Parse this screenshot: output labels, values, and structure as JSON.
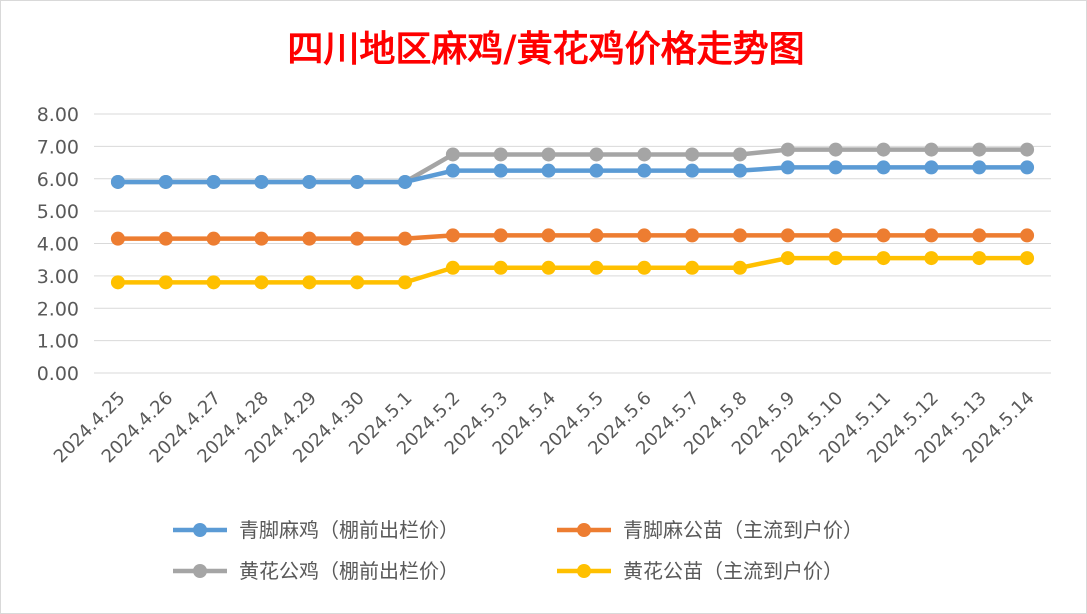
{
  "chart_data": {
    "type": "line",
    "title": "四川地区麻鸡/黄花鸡价格走势图",
    "title_color": "#ff0000",
    "xlabel": "",
    "ylabel": "",
    "ylim": [
      0,
      8
    ],
    "ytick_step": 1,
    "ytick_labels": [
      "0.00",
      "1.00",
      "2.00",
      "3.00",
      "4.00",
      "5.00",
      "6.00",
      "7.00",
      "8.00"
    ],
    "grid": true,
    "legend_position": "bottom",
    "categories": [
      "2024.4.25",
      "2024.4.26",
      "2024.4.27",
      "2024.4.28",
      "2024.4.29",
      "2024.4.30",
      "2024.5.1",
      "2024.5.2",
      "2024.5.3",
      "2024.5.4",
      "2024.5.5",
      "2024.5.6",
      "2024.5.7",
      "2024.5.8",
      "2024.5.9",
      "2024.5.10",
      "2024.5.11",
      "2024.5.12",
      "2024.5.13",
      "2024.5.14"
    ],
    "series": [
      {
        "name": "青脚麻鸡（棚前出栏价）",
        "color": "#5b9bd5",
        "values": [
          5.9,
          5.9,
          5.9,
          5.9,
          5.9,
          5.9,
          5.9,
          6.25,
          6.25,
          6.25,
          6.25,
          6.25,
          6.25,
          6.25,
          6.35,
          6.35,
          6.35,
          6.35,
          6.35,
          6.35
        ]
      },
      {
        "name": "青脚麻公苗（主流到户价）",
        "color": "#ed7d31",
        "values": [
          4.15,
          4.15,
          4.15,
          4.15,
          4.15,
          4.15,
          4.15,
          4.25,
          4.25,
          4.25,
          4.25,
          4.25,
          4.25,
          4.25,
          4.25,
          4.25,
          4.25,
          4.25,
          4.25,
          4.25
        ]
      },
      {
        "name": "黄花公鸡（棚前出栏价）",
        "color": "#a5a5a5",
        "values": [
          5.9,
          5.9,
          5.9,
          5.9,
          5.9,
          5.9,
          5.9,
          6.75,
          6.75,
          6.75,
          6.75,
          6.75,
          6.75,
          6.75,
          6.9,
          6.9,
          6.9,
          6.9,
          6.9,
          6.9
        ]
      },
      {
        "name": "黄花公苗（主流到户价）",
        "color": "#ffc000",
        "values": [
          2.8,
          2.8,
          2.8,
          2.8,
          2.8,
          2.8,
          2.8,
          3.25,
          3.25,
          3.25,
          3.25,
          3.25,
          3.25,
          3.25,
          3.55,
          3.55,
          3.55,
          3.55,
          3.55,
          3.55
        ]
      }
    ]
  }
}
